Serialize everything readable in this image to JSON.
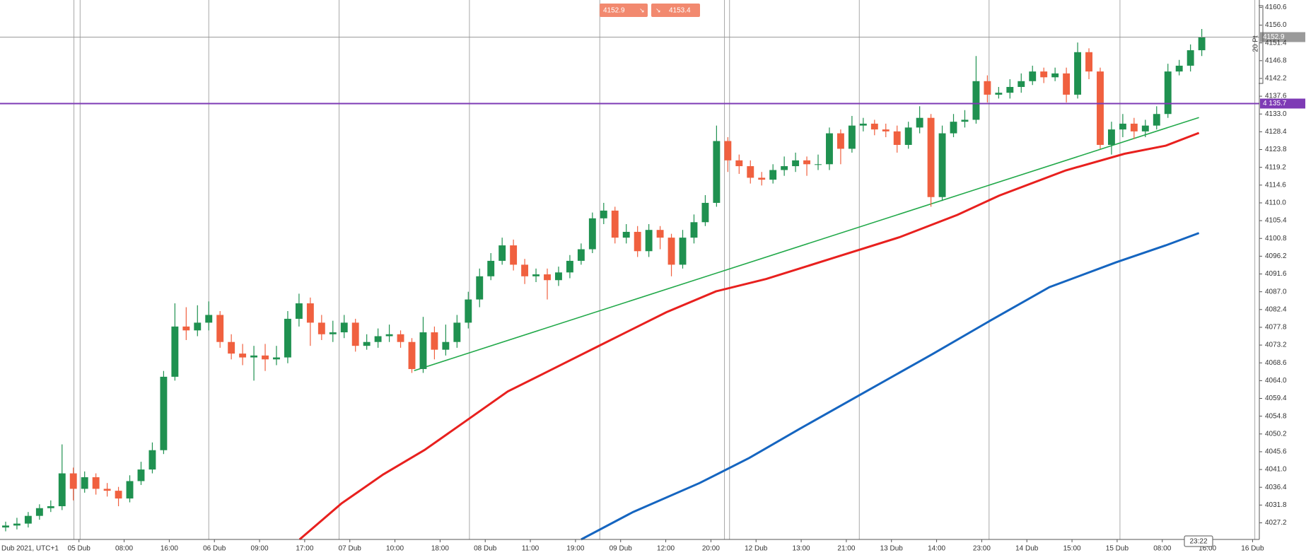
{
  "chart_data": {
    "type": "candlestick",
    "time_origin_label": "Dub 2021, UTC+1",
    "quote_buttons": {
      "sell": 4152.9,
      "buy": 4153.4
    },
    "measure_label": "20 Pt",
    "timer": "23:22",
    "up_color": "#1f9150",
    "down_color": "#f0603f",
    "xlim": [
      0,
      223.2
    ],
    "ylim": [
      4022.9,
      4162.5
    ],
    "xticks": [
      {
        "value": 14,
        "label": "05 Dub"
      },
      {
        "value": 22,
        "label": "08:00"
      },
      {
        "value": 30,
        "label": "16:00"
      },
      {
        "value": 38,
        "label": "06 Dub"
      },
      {
        "value": 46,
        "label": "09:00"
      },
      {
        "value": 54,
        "label": "17:00"
      },
      {
        "value": 62,
        "label": "07 Dub"
      },
      {
        "value": 70,
        "label": "10:00"
      },
      {
        "value": 78,
        "label": "18:00"
      },
      {
        "value": 86,
        "label": "08 Dub"
      },
      {
        "value": 94,
        "label": "11:00"
      },
      {
        "value": 102,
        "label": "19:00"
      },
      {
        "value": 110,
        "label": "09 Dub"
      },
      {
        "value": 118,
        "label": "12:00"
      },
      {
        "value": 126,
        "label": "20:00"
      },
      {
        "value": 134,
        "label": "12 Dub"
      },
      {
        "value": 142,
        "label": "13:00"
      },
      {
        "value": 150,
        "label": "21:00"
      },
      {
        "value": 158,
        "label": "13 Dub"
      },
      {
        "value": 166,
        "label": "14:00"
      },
      {
        "value": 174,
        "label": "23:00"
      },
      {
        "value": 182,
        "label": "14 Dub"
      },
      {
        "value": 190,
        "label": "15:00"
      },
      {
        "value": 198,
        "label": "15 Dub"
      },
      {
        "value": 206,
        "label": "08:00"
      },
      {
        "value": 214,
        "label": "16:00"
      },
      {
        "value": 222,
        "label": "16 Dub"
      }
    ],
    "yticks": [
      4160.6,
      {
        "value": 4156,
        "label": "4156.0"
      },
      4151.4,
      4146.8,
      4142.2,
      4137.6,
      {
        "value": 4133,
        "label": "4133.0"
      },
      4128.4,
      4123.8,
      4119.2,
      4114.6,
      {
        "value": 4110,
        "label": "4110.0"
      },
      4105.4,
      4100.8,
      4096.2,
      4091.6,
      {
        "value": 4087,
        "label": "4087.0"
      },
      4082.4,
      4077.8,
      4073.2,
      4068.6,
      {
        "value": 4064,
        "label": "4064.0"
      },
      4059.4,
      4054.8,
      4050.2,
      4045.6,
      {
        "value": 4041,
        "label": "4041.0"
      },
      4036.4,
      4031.8,
      4027.2
    ],
    "period_separators": [
      13.1,
      14.2,
      37.0,
      60.1,
      83.2,
      106.3,
      128.4,
      129.3,
      152.3,
      175.3,
      198.5,
      222.4
    ],
    "x": [
      1,
      3,
      5,
      7,
      9,
      11,
      13,
      15,
      17,
      19,
      21,
      23,
      25,
      27,
      29,
      31,
      33,
      35,
      37,
      39,
      41,
      43,
      45,
      47,
      49,
      51,
      53,
      55,
      57,
      59,
      61,
      63,
      65,
      67,
      69,
      71,
      73,
      75,
      77,
      79,
      81,
      83,
      85,
      87,
      89,
      91,
      93,
      95,
      97,
      99,
      101,
      103,
      105,
      107,
      109,
      111,
      113,
      115,
      117,
      119,
      121,
      123,
      125,
      127,
      129,
      131,
      133,
      135,
      137,
      139,
      141,
      143,
      145,
      147,
      149,
      151,
      153,
      155,
      157,
      159,
      161,
      163,
      165,
      167,
      169,
      171,
      173,
      175,
      177,
      179,
      181,
      183,
      185,
      187,
      189,
      191,
      193,
      195,
      197,
      199,
      201,
      203,
      205,
      207,
      209,
      211,
      213
    ],
    "open": [
      4026,
      4026.5,
      4027,
      4029,
      4031,
      4031.5,
      4040,
      4036,
      4039,
      4036,
      4035.5,
      4033.5,
      4038,
      4041,
      4046,
      4065,
      4078,
      4077,
      4079,
      4081,
      4074,
      4071,
      4070,
      4070.5,
      4069.5,
      4070,
      4080,
      4084,
      4079,
      4076,
      4076.5,
      4079,
      4073,
      4074,
      4075.5,
      4076,
      4074,
      4067,
      4076.5,
      4072,
      4074,
      4079,
      4085,
      4091,
      4095,
      4099,
      4094,
      4091,
      4091.5,
      4090,
      4092,
      4095,
      4098,
      4106,
      4108,
      4101,
      4102.5,
      4097.5,
      4103,
      4101,
      4094,
      4101,
      4105,
      4110,
      4126,
      4121,
      4119.5,
      4116.5,
      4116,
      4118.5,
      4119.5,
      4121,
      4120,
      4120,
      4128,
      4124,
      4130,
      4130.5,
      4129,
      4128.5,
      4125,
      4129.5,
      4132,
      4111.5,
      4128,
      4131,
      4131.5,
      4141.5,
      4138,
      4138.5,
      4140,
      4141.5,
      4144,
      4142.5,
      4143.5,
      4138,
      4149,
      4144,
      4125,
      4129,
      4130.5,
      4128.5,
      4130,
      4133,
      4144,
      4145.5,
      4149.5
    ],
    "high": [
      4027.5,
      4028.5,
      4030,
      4032,
      4033,
      4047.5,
      4041.5,
      4040.5,
      4040,
      4037.5,
      4036.5,
      4039.5,
      4043,
      4048,
      4066.5,
      4084,
      4083,
      4083.5,
      4084.5,
      4082,
      4076,
      4073.5,
      4073,
      4073.5,
      4073,
      4082,
      4086.5,
      4085.5,
      4081,
      4079.5,
      4081,
      4080,
      4076,
      4077.5,
      4078.5,
      4077,
      4075,
      4080.5,
      4078,
      4078.5,
      4081,
      4087,
      4093,
      4097,
      4101,
      4100.5,
      4095.5,
      4093,
      4093,
      4093.5,
      4096.5,
      4099.5,
      4107.5,
      4110,
      4109,
      4104.5,
      4104,
      4104.5,
      4104,
      4102,
      4103,
      4107,
      4112,
      4130,
      4127,
      4122.5,
      4121,
      4118,
      4120,
      4122,
      4123,
      4122,
      4122.5,
      4129.5,
      4129,
      4132.5,
      4132,
      4131.5,
      4130.5,
      4130,
      4131,
      4135,
      4133,
      4130,
      4133,
      4134,
      4148,
      4143,
      4140,
      4142,
      4143.5,
      4145.5,
      4145,
      4145,
      4145,
      4151.5,
      4150,
      4145,
      4131,
      4133,
      4132,
      4131.5,
      4135,
      4146,
      4147,
      4151,
      4155
    ],
    "low": [
      4025,
      4025.5,
      4026,
      4028,
      4030,
      4030.5,
      4033,
      4035,
      4034.5,
      4034,
      4031.5,
      4032.5,
      4037,
      4040,
      4045,
      4064,
      4074.5,
      4075.5,
      4077,
      4072.5,
      4069.5,
      4068,
      4064,
      4066.5,
      4068,
      4068.5,
      4078,
      4073,
      4074.5,
      4074,
      4075,
      4071.5,
      4072,
      4072.5,
      4074,
      4072.5,
      4066,
      4066,
      4069.5,
      4070.5,
      4072.5,
      4077.5,
      4083,
      4090,
      4094,
      4092.5,
      4089,
      4089.5,
      4085,
      4088.5,
      4090.5,
      4094,
      4097,
      4104.5,
      4099.5,
      4099.5,
      4096,
      4096,
      4098,
      4091,
      4093,
      4099.5,
      4104,
      4109,
      4118,
      4117.5,
      4115,
      4114.5,
      4115,
      4117,
      4118,
      4117,
      4118.5,
      4118.5,
      4120,
      4123,
      4128.5,
      4127.5,
      4127,
      4123,
      4124,
      4128,
      4109,
      4110.5,
      4127,
      4129.5,
      4130.5,
      4136,
      4137,
      4137,
      4138.5,
      4140.5,
      4141,
      4141.5,
      4136,
      4137,
      4142,
      4124,
      4122.5,
      4127,
      4126.5,
      4127,
      4129,
      4132,
      4143,
      4144,
      4148
    ],
    "close": [
      4026.5,
      4027,
      4029,
      4031,
      4031.5,
      4040,
      4036,
      4039,
      4036,
      4035.5,
      4033.5,
      4038,
      4041,
      4046,
      4065,
      4078,
      4077,
      4079,
      4081,
      4074,
      4071,
      4070,
      4070.5,
      4069.5,
      4070,
      4080,
      4084,
      4079,
      4076,
      4076.5,
      4079,
      4073,
      4074,
      4075.5,
      4076,
      4074,
      4067,
      4076.5,
      4072,
      4074,
      4079,
      4085,
      4091,
      4095,
      4099,
      4094,
      4091,
      4091.5,
      4090,
      4092,
      4095,
      4098,
      4106,
      4108,
      4101,
      4102.5,
      4097.5,
      4103,
      4101,
      4094,
      4101,
      4105,
      4110,
      4126,
      4121,
      4119.5,
      4116.5,
      4116,
      4118.5,
      4119.5,
      4121,
      4120,
      4120,
      4128,
      4124,
      4130,
      4130.5,
      4129,
      4128.5,
      4125,
      4129.5,
      4132,
      4111.5,
      4128,
      4131,
      4131.5,
      4141.5,
      4138,
      4138.5,
      4140,
      4141.5,
      4144,
      4142.5,
      4143.5,
      4138,
      4149,
      4144,
      4125,
      4129,
      4130.5,
      4128.5,
      4130,
      4133,
      4144,
      4145.5,
      4149.5,
      4152.9
    ],
    "lines": [
      {
        "color": "#e8201e",
        "x": [
          53.1,
          60.5,
          67.9,
          75.3,
          82.7,
          90.0,
          97.4,
          106.3,
          118.1,
          126.9,
          135.8,
          147.6,
          159.4,
          169.7,
          177.1,
          188.9,
          199.3,
          206.6,
          212.5
        ],
        "values": [
          4022.9,
          4032.2,
          4039.7,
          4046.1,
          4053.7,
          4061.2,
          4066.6,
          4073.1,
          4081.7,
          4087.1,
          4090.3,
          4095.7,
          4101.1,
          4106.9,
          4111.9,
          4118.4,
          4122.7,
          4124.8,
          4128.1
        ]
      },
      {
        "color": "#1565c0",
        "x": [
          103.0,
          112.2,
          124.0,
          132.8,
          141.7,
          153.5,
          165.3,
          175.6,
          186.0,
          197.8,
          206.6,
          212.5
        ],
        "values": [
          4022.9,
          4030.0,
          4037.5,
          4044.0,
          4051.5,
          4061.2,
          4070.9,
          4079.6,
          4088.2,
          4094.6,
          4099.0,
          4102.2
        ]
      },
      {
        "color": "#22a94a",
        "x": [
          73.4,
          212.5
        ],
        "values": [
          4066.6,
          4132.1
        ]
      }
    ],
    "price_lines": [
      {
        "value": 4135.7,
        "label": "4 135.7",
        "color": "#7e3bb5"
      },
      {
        "value": 4152.9,
        "color": "#9a9a9a"
      }
    ]
  }
}
